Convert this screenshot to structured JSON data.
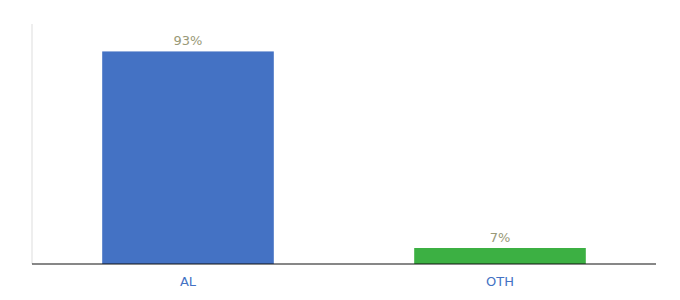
{
  "chart_data": {
    "type": "bar",
    "categories": [
      "AL",
      "OTH"
    ],
    "values": [
      93,
      7
    ],
    "value_labels": [
      "93%",
      "7%"
    ],
    "colors": [
      "#4472c4",
      "#3cb043"
    ],
    "ylim": [
      0,
      105
    ],
    "data_labels": true,
    "tick_labels": "x",
    "grid": false
  }
}
